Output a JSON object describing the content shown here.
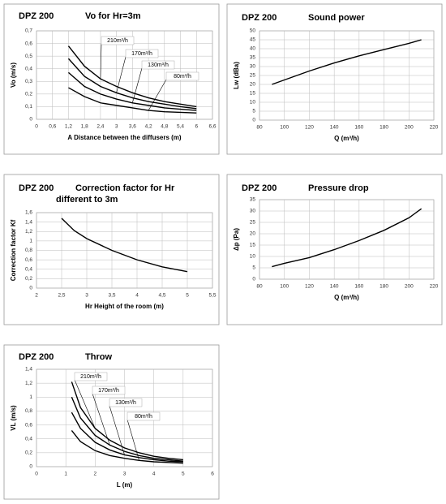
{
  "chart_data": [
    {
      "type": "line",
      "title": "DPZ 200",
      "subtitle": "Vo for Hr=3m",
      "x_label": "A Distance between the diffusers (m)",
      "y_label": "Vo (m/s)",
      "x": [
        1.2,
        1.8,
        2.4,
        3,
        3.6,
        4.2,
        4.8,
        5.4,
        6
      ],
      "series": [
        {
          "name": "210m³/h",
          "color": "#000000",
          "values": [
            0.58,
            0.42,
            0.32,
            0.26,
            0.21,
            0.17,
            0.14,
            0.12,
            0.1
          ]
        },
        {
          "name": "170m³/h",
          "color": "#000000",
          "values": [
            0.48,
            0.34,
            0.26,
            0.21,
            0.17,
            0.14,
            0.12,
            0.1,
            0.085
          ]
        },
        {
          "name": "130m³/h",
          "color": "#000000",
          "values": [
            0.37,
            0.26,
            0.2,
            0.16,
            0.13,
            0.11,
            0.09,
            0.08,
            0.07
          ]
        },
        {
          "name": "80m³/h",
          "color": "#000000",
          "values": [
            0.25,
            0.18,
            0.13,
            0.11,
            0.09,
            0.07,
            0.06,
            0.055,
            0.05
          ]
        }
      ],
      "xlim": [
        0,
        6.6
      ],
      "xticks": [
        0,
        {
          "value": 0.6,
          "label": "0,6"
        },
        {
          "value": 1.2,
          "label": "1,2"
        },
        {
          "value": 1.8,
          "label": "1,8"
        },
        {
          "value": 2.4,
          "label": "2,4"
        },
        3,
        {
          "value": 3.6,
          "label": "3,6"
        },
        {
          "value": 4.2,
          "label": "4,2"
        },
        {
          "value": 4.8,
          "label": "4,8"
        },
        {
          "value": 5.4,
          "label": "5,4"
        },
        6,
        {
          "value": 6.6,
          "label": "6,6"
        }
      ],
      "ylim": [
        0,
        0.7
      ],
      "yticks": [
        0,
        {
          "value": 0.1,
          "label": "0,1"
        },
        {
          "value": 0.2,
          "label": "0,2"
        },
        {
          "value": 0.3,
          "label": "0,3"
        },
        {
          "value": 0.4,
          "label": "0,4"
        },
        {
          "value": 0.5,
          "label": "0,5"
        },
        {
          "value": 0.6,
          "label": "0,6"
        },
        {
          "value": 0.7,
          "label": "0,7"
        }
      ],
      "grid": true
    },
    {
      "type": "line",
      "title": "DPZ 200",
      "subtitle": "Sound power",
      "x_label": "Q (m³/h)",
      "y_label": "Lw (dBa)",
      "x": [
        90,
        100,
        120,
        140,
        160,
        180,
        200,
        210
      ],
      "values": [
        20,
        22.5,
        27.5,
        32,
        36,
        39.5,
        43,
        45
      ],
      "color": "#000000",
      "xlim": [
        80,
        220
      ],
      "xticks": [
        80,
        100,
        120,
        140,
        160,
        180,
        200,
        220
      ],
      "ylim": [
        0,
        50
      ],
      "yticks": [
        0,
        5,
        10,
        15,
        20,
        25,
        30,
        35,
        40,
        45,
        50
      ],
      "grid": true
    },
    {
      "type": "line",
      "title": "DPZ 200",
      "subtitle": [
        "Correction factor for Hr",
        "different to 3m"
      ],
      "x_label": "Hr Height of the room (m)",
      "y_label": "Correction factor Kf",
      "x": [
        2.5,
        2.75,
        3,
        3.5,
        4,
        4.5,
        5
      ],
      "values": [
        1.48,
        1.22,
        1.05,
        0.8,
        0.6,
        0.45,
        0.35
      ],
      "color": "#000000",
      "xlim": [
        2,
        5.5
      ],
      "xticks": [
        2,
        {
          "value": 2.5,
          "label": "2,5"
        },
        3,
        {
          "value": 3.5,
          "label": "3,5"
        },
        4,
        {
          "value": 4.5,
          "label": "4,5"
        },
        5,
        {
          "value": 5.5,
          "label": "5,5"
        }
      ],
      "ylim": [
        0,
        1.6
      ],
      "yticks": [
        0,
        {
          "value": 0.2,
          "label": "0,2"
        },
        {
          "value": 0.4,
          "label": "0,4"
        },
        {
          "value": 0.6,
          "label": "0,6"
        },
        {
          "value": 0.8,
          "label": "0,8"
        },
        1,
        {
          "value": 1.2,
          "label": "1,2"
        },
        {
          "value": 1.4,
          "label": "1,4"
        },
        {
          "value": 1.6,
          "label": "1,6"
        }
      ],
      "grid": true
    },
    {
      "type": "line",
      "title": "DPZ 200",
      "subtitle": "Pressure drop",
      "x_label": "Q (m³/h)",
      "y_label": "Δp (Pa)",
      "x": [
        90,
        100,
        120,
        140,
        160,
        180,
        200,
        210
      ],
      "values": [
        5.5,
        7,
        9.5,
        13,
        17,
        21.5,
        27,
        31
      ],
      "color": "#000000",
      "xlim": [
        80,
        220
      ],
      "xticks": [
        80,
        100,
        120,
        140,
        160,
        180,
        200,
        220
      ],
      "ylim": [
        0,
        35
      ],
      "yticks": [
        0,
        5,
        10,
        15,
        20,
        25,
        30,
        35
      ],
      "grid": true
    },
    {
      "type": "line",
      "title": "DPZ 200",
      "subtitle": "Throw",
      "x_label": "L (m)",
      "y_label": "VL (m/s)",
      "x": [
        1.2,
        1.5,
        2,
        2.5,
        3,
        3.5,
        4,
        4.5,
        5
      ],
      "series": [
        {
          "name": "210m³/h",
          "color": "#000000",
          "values": [
            1.22,
            0.85,
            0.55,
            0.38,
            0.27,
            0.2,
            0.15,
            0.12,
            0.1
          ]
        },
        {
          "name": "170m³/h",
          "color": "#000000",
          "values": [
            1.0,
            0.7,
            0.45,
            0.31,
            0.22,
            0.16,
            0.12,
            0.1,
            0.08
          ]
        },
        {
          "name": "130m³/h",
          "color": "#000000",
          "values": [
            0.78,
            0.55,
            0.35,
            0.24,
            0.17,
            0.13,
            0.1,
            0.08,
            0.07
          ]
        },
        {
          "name": "80m³/h",
          "color": "#000000",
          "values": [
            0.52,
            0.36,
            0.23,
            0.16,
            0.12,
            0.09,
            0.07,
            0.06,
            0.05
          ]
        }
      ],
      "xlim": [
        0,
        6
      ],
      "xticks": [
        0,
        1,
        2,
        3,
        4,
        5,
        6
      ],
      "ylim": [
        0,
        1.4
      ],
      "yticks": [
        0,
        {
          "value": 0.2,
          "label": "0,2"
        },
        {
          "value": 0.4,
          "label": "0,4"
        },
        {
          "value": 0.6,
          "label": "0,6"
        },
        {
          "value": 0.8,
          "label": "0,8"
        },
        1,
        {
          "value": 1.2,
          "label": "1,2"
        },
        {
          "value": 1.4,
          "label": "1,4"
        }
      ],
      "grid": true
    }
  ]
}
